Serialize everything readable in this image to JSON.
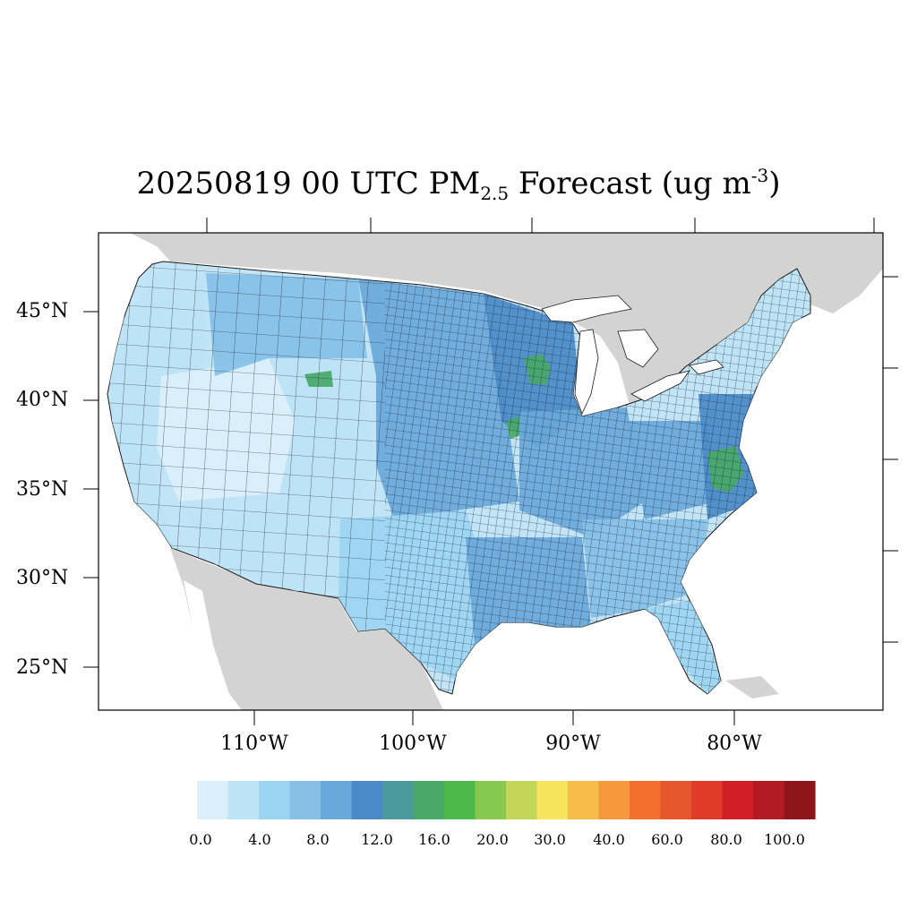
{
  "title": {
    "prefix": "20250819 00 UTC PM",
    "subscript": "2.5",
    "middle": " Forecast (ug m",
    "superscript": "-3",
    "suffix": ")"
  },
  "map": {
    "lat_labels": [
      "45°N",
      "40°N",
      "35°N",
      "30°N",
      "25°N"
    ],
    "lon_labels": [
      "110°W",
      "100°W",
      "90°W",
      "80°W"
    ],
    "colors": {
      "ocean": "#ffffff",
      "land_outside": "#d3d3d3",
      "great_lakes": "#ffffff",
      "county_border": "#1a1a1a",
      "base_fill": "#c2e4f7"
    },
    "regions": [
      {
        "name": "west-coast",
        "bin": 1
      },
      {
        "name": "great-basin",
        "bin": 0
      },
      {
        "name": "southwest",
        "bin": 1
      },
      {
        "name": "rockies",
        "bin": 1
      },
      {
        "name": "northern-rockies",
        "bin": 3
      },
      {
        "name": "wyoming-hotspot",
        "bin": 7
      },
      {
        "name": "northern-plains",
        "bin": 4
      },
      {
        "name": "central-plains",
        "bin": 4
      },
      {
        "name": "texas",
        "bin": 2
      },
      {
        "name": "gulf-coast",
        "bin": 4
      },
      {
        "name": "upper-midwest",
        "bin": 5
      },
      {
        "name": "minnesota-hotspot",
        "bin": 7
      },
      {
        "name": "iowa-hotspot",
        "bin": 7
      },
      {
        "name": "midwest",
        "bin": 4
      },
      {
        "name": "southeast",
        "bin": 3
      },
      {
        "name": "florida",
        "bin": 2
      },
      {
        "name": "appalachia",
        "bin": 4
      },
      {
        "name": "mid-atlantic",
        "bin": 5
      },
      {
        "name": "virginia-hotspot",
        "bin": 7
      },
      {
        "name": "new-england",
        "bin": 1
      }
    ]
  },
  "colorbar": {
    "colors": [
      "#dbf0fa",
      "#bde3f6",
      "#9bd5f3",
      "#86c0e8",
      "#69a8da",
      "#4a8ac8",
      "#4a9a9e",
      "#48a868",
      "#4cba4a",
      "#88c84c",
      "#c3d657",
      "#f5e45c",
      "#f6bb4b",
      "#f6983b",
      "#f36f2c",
      "#e8562b",
      "#df3b28",
      "#d21e27",
      "#b41a24",
      "#8e161b"
    ],
    "labels": [
      "0.0",
      "4.0",
      "8.0",
      "12.0",
      "16.0",
      "20.0",
      "30.0",
      "40.0",
      "60.0",
      "80.0",
      "100.0"
    ]
  }
}
